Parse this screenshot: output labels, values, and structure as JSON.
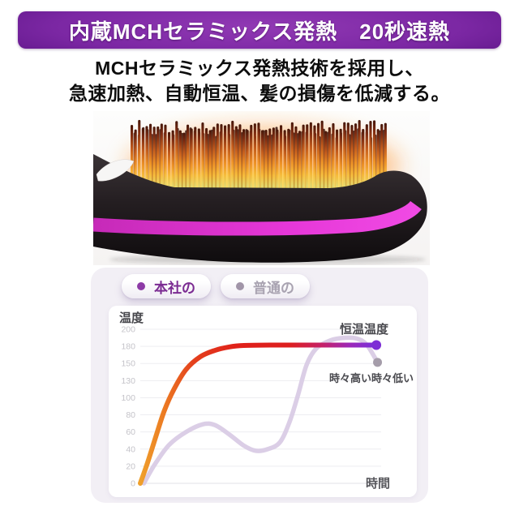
{
  "banner": {
    "title": "内蔵MCHセラミックス発熱　20秒速熱",
    "bg_color": "#7b27a3",
    "text_color": "#ffffff"
  },
  "description": {
    "line1": "MCHセラミックス発熱技術を採用し、",
    "line2": "急速加熱、自動恒温、髪の損傷を低減する。"
  },
  "product_image": {
    "subject": "加熱中のMCHセラミックブラシ(側面)",
    "body_color": "#221c1f",
    "stripe_color": "#e637d8",
    "bristle_glow_color": "#ff8c1f"
  },
  "legend": {
    "items": [
      {
        "label": "本社の",
        "dot_color": "#8d3aa6",
        "text_color": "#7b2b92",
        "active": true
      },
      {
        "label": "普通の",
        "dot_color": "#a195a8",
        "text_color": "#a9a3b1",
        "active": false
      }
    ]
  },
  "chart_data": {
    "type": "line",
    "title": "温度",
    "ylabel": "温度",
    "xlabel": "時間",
    "y_ticks": [
      0,
      20,
      40,
      60,
      80,
      100,
      130,
      150,
      180,
      200
    ],
    "x_range": [
      0,
      1
    ],
    "grid": true,
    "legend_position": "top-left-outside",
    "annotations": [
      {
        "text": "恒温温度",
        "series": "本社の",
        "position": "above-end-dot"
      },
      {
        "text": "時々高い時々低い",
        "series": "普通の",
        "position": "below-end-dot"
      }
    ],
    "series": [
      {
        "name": "本社の",
        "line_width": 6,
        "color_stops": [
          {
            "o": 0.0,
            "c": "#efa02c"
          },
          {
            "o": 0.1,
            "c": "#ec7a22"
          },
          {
            "o": 0.22,
            "c": "#e4401d"
          },
          {
            "o": 0.4,
            "c": "#e0211a"
          },
          {
            "o": 0.62,
            "c": "#dd1f1f"
          },
          {
            "o": 0.76,
            "c": "#c4216b"
          },
          {
            "o": 0.87,
            "c": "#9c28b8"
          },
          {
            "o": 0.96,
            "c": "#7d2ed5"
          }
        ],
        "points": [
          [
            0,
            0
          ],
          [
            0.03,
            24
          ],
          [
            0.065,
            55
          ],
          [
            0.1,
            85
          ],
          [
            0.14,
            115
          ],
          [
            0.19,
            143
          ],
          [
            0.25,
            162
          ],
          [
            0.31,
            173
          ],
          [
            0.37,
            179
          ],
          [
            0.43,
            181
          ],
          [
            0.55,
            181.5
          ],
          [
            0.7,
            181.5
          ],
          [
            0.85,
            181.5
          ],
          [
            0.98,
            181.5
          ]
        ],
        "end_dot": {
          "x": 0.98,
          "value": 181.5,
          "color": "#7d2ed5",
          "r": 6
        }
      },
      {
        "name": "普通の",
        "line_width": 5.5,
        "color": "#d9cbe5",
        "opacity": 0.95,
        "points": [
          [
            0.015,
            0
          ],
          [
            0.06,
            22
          ],
          [
            0.12,
            45
          ],
          [
            0.19,
            60
          ],
          [
            0.26,
            69
          ],
          [
            0.31,
            68
          ],
          [
            0.37,
            57
          ],
          [
            0.43,
            44
          ],
          [
            0.48,
            38
          ],
          [
            0.53,
            40
          ],
          [
            0.58,
            48
          ],
          [
            0.62,
            72
          ],
          [
            0.655,
            105
          ],
          [
            0.69,
            148
          ],
          [
            0.73,
            176
          ],
          [
            0.79,
            187
          ],
          [
            0.85,
            190
          ],
          [
            0.9,
            189
          ],
          [
            0.94,
            182
          ],
          [
            0.985,
            152
          ]
        ],
        "end_dot": {
          "x": 0.985,
          "value": 152,
          "color": "#a59daa",
          "r": 5.5
        }
      }
    ]
  }
}
